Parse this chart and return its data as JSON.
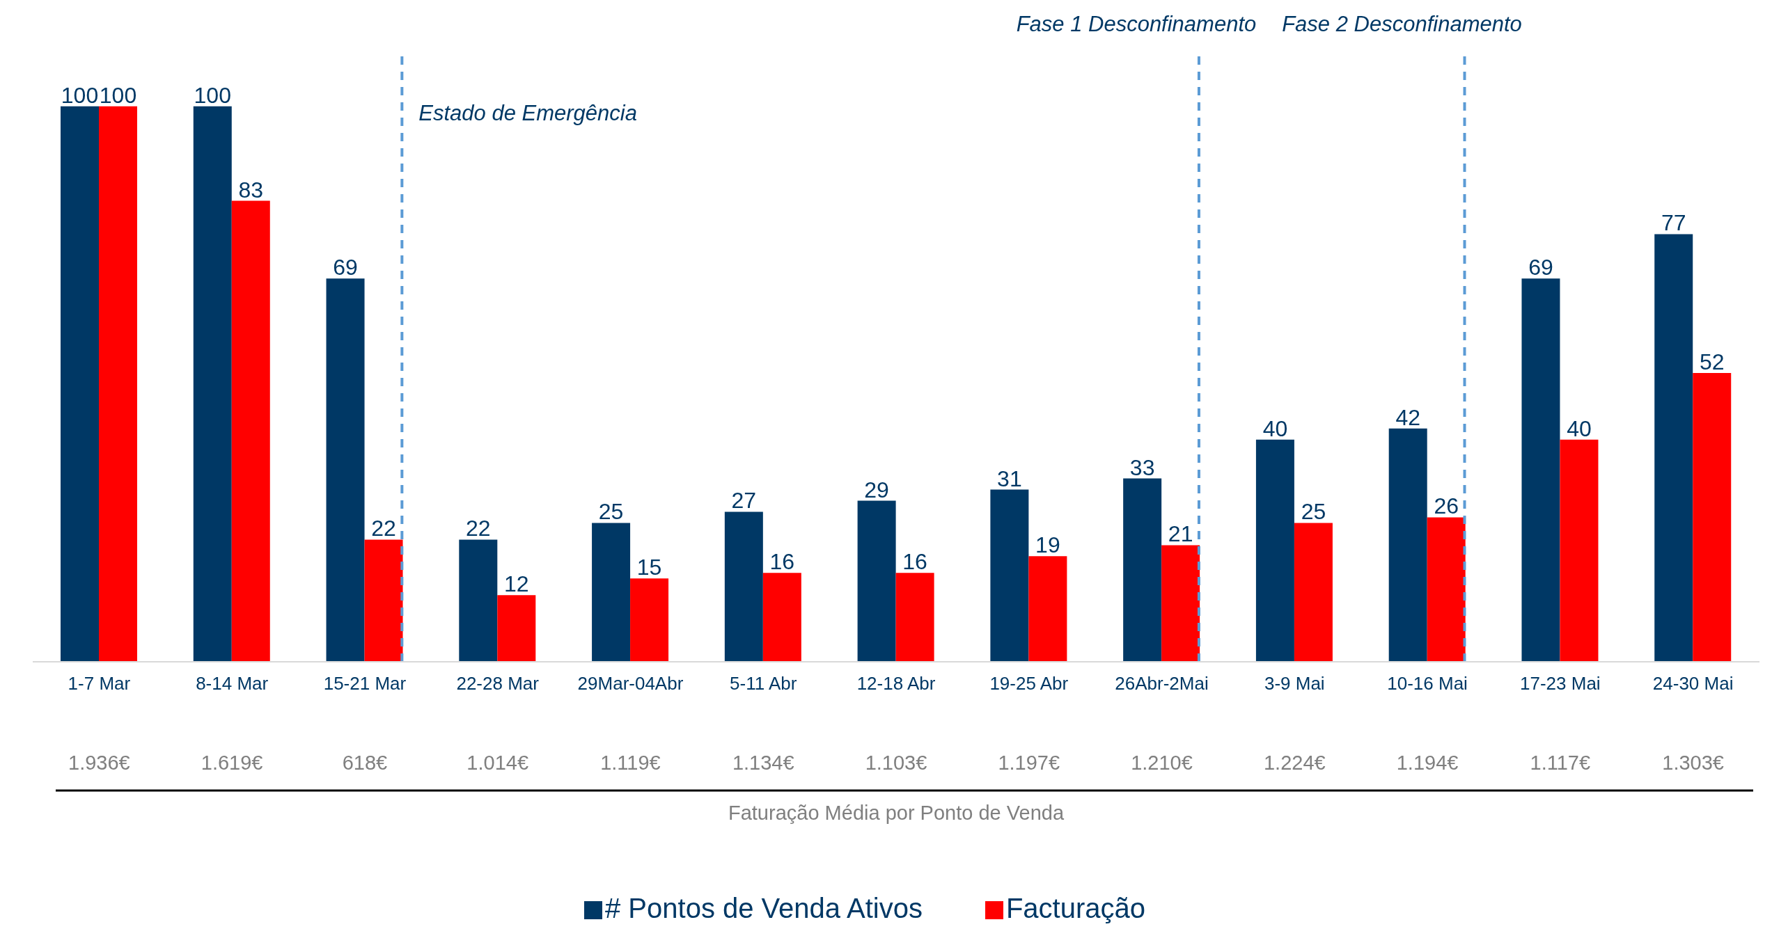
{
  "chart_data": {
    "type": "bar",
    "categories": [
      "1-7 Mar",
      "8-14 Mar",
      "15-21 Mar",
      "22-28 Mar",
      "29Mar-04Abr",
      "5-11 Abr",
      "12-18 Abr",
      "19-25 Abr",
      "26Abr-2Mai",
      "3-9 Mai",
      "10-16 Mai",
      "17-23 Mai",
      "24-30 Mai"
    ],
    "series": [
      {
        "name": "# Pontos de Venda Ativos",
        "color": "#003865",
        "values": [
          100,
          100,
          69,
          22,
          25,
          27,
          29,
          31,
          33,
          40,
          42,
          69,
          77
        ]
      },
      {
        "name": "Facturação",
        "color": "#ff0000",
        "values": [
          100,
          83,
          22,
          12,
          15,
          16,
          16,
          19,
          21,
          25,
          26,
          40,
          52
        ]
      }
    ],
    "ylim": [
      0,
      110
    ],
    "data_labels": true,
    "annotations": [
      "1.936€",
      "1.619€",
      "618€",
      "1.014€",
      "1.119€",
      "1.134€",
      "1.103€",
      "1.197€",
      "1.210€",
      "1.224€",
      "1.194€",
      "1.117€",
      "1.303€",
      "Faturação Média por Ponto de Venda"
    ],
    "ref_lines": [
      {
        "axis": "x",
        "value": "15-21 Mar",
        "label": "Estado de Emergência",
        "color": "#5b9bd5",
        "line_style": "dashed"
      },
      {
        "axis": "x",
        "value": "26Abr-2Mai",
        "label": "Fase 1 Desconfinamento",
        "color": "#5b9bd5",
        "line_style": "dashed"
      },
      {
        "axis": "x",
        "value": "10-16 Mai",
        "label": "Fase 2 Desconfinamento",
        "color": "#5b9bd5",
        "line_style": "dashed"
      }
    ],
    "grid": false,
    "legend": "bottom"
  }
}
